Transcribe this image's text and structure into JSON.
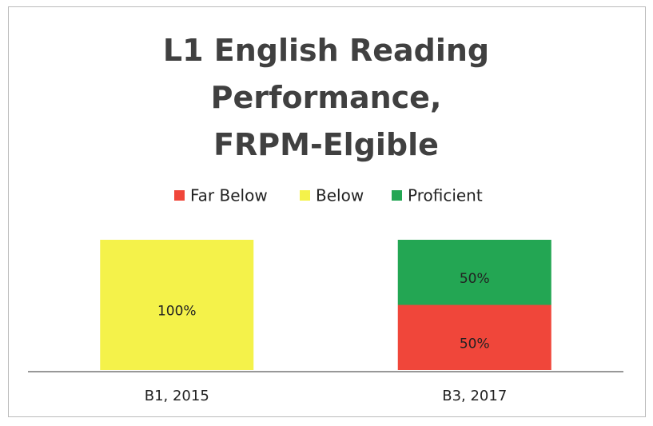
{
  "chart_data": {
    "type": "stacked_bar",
    "title": "L1 English Reading Performance, FRPM-Elgible",
    "categories": [
      "B1, 2015",
      "B3, 2017"
    ],
    "series": [
      {
        "name": "Far Below",
        "color": "#f0463a",
        "values": [
          0,
          50
        ],
        "value_labels": [
          null,
          "50%"
        ]
      },
      {
        "name": "Below",
        "color": "#f4f24a",
        "values": [
          100,
          0
        ],
        "value_labels": [
          "100%",
          null
        ]
      },
      {
        "name": "Proficient",
        "color": "#23a653",
        "values": [
          0,
          50
        ],
        "value_labels": [
          null,
          "50%"
        ]
      }
    ],
    "legend": "top"
  }
}
